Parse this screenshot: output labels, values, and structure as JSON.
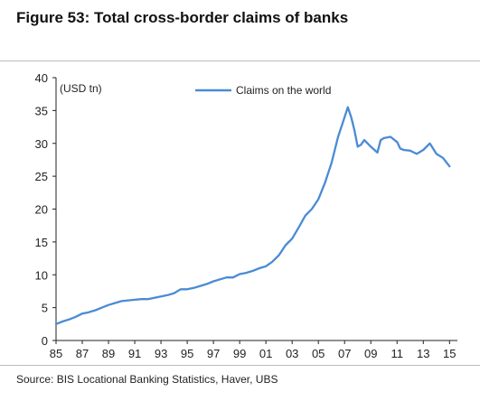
{
  "figure": {
    "title": "Figure 53: Total cross-border claims of banks",
    "source": "Source:  BIS Locational Banking Statistics, Haver, UBS"
  },
  "chart_data": {
    "type": "line",
    "ylabel": "(USD tn)",
    "ylim": [
      0,
      40
    ],
    "yticks": [
      0,
      5,
      10,
      15,
      20,
      25,
      30,
      35,
      40
    ],
    "xlim": [
      1985,
      2015.6
    ],
    "xticks": [
      {
        "label": "85",
        "x": 1985
      },
      {
        "label": "87",
        "x": 1987
      },
      {
        "label": "89",
        "x": 1989
      },
      {
        "label": "91",
        "x": 1991
      },
      {
        "label": "93",
        "x": 1993
      },
      {
        "label": "95",
        "x": 1995
      },
      {
        "label": "97",
        "x": 1997
      },
      {
        "label": "99",
        "x": 1999
      },
      {
        "label": "01",
        "x": 2001
      },
      {
        "label": "03",
        "x": 2003
      },
      {
        "label": "05",
        "x": 2005
      },
      {
        "label": "07",
        "x": 2007
      },
      {
        "label": "09",
        "x": 2009
      },
      {
        "label": "11",
        "x": 2011
      },
      {
        "label": "13",
        "x": 2013
      },
      {
        "label": "15",
        "x": 2015
      }
    ],
    "grid": false,
    "legend_position": "top-center",
    "series": [
      {
        "name": "Claims on the world",
        "color": "#4a8bd4",
        "x": [
          1985.0,
          1985.5,
          1986.0,
          1986.5,
          1987.0,
          1987.5,
          1988.0,
          1988.5,
          1989.0,
          1989.5,
          1990.0,
          1990.5,
          1991.0,
          1991.5,
          1992.0,
          1992.5,
          1993.0,
          1993.5,
          1994.0,
          1994.5,
          1995.0,
          1995.5,
          1996.0,
          1996.5,
          1997.0,
          1997.5,
          1998.0,
          1998.5,
          1999.0,
          1999.5,
          2000.0,
          2000.5,
          2001.0,
          2001.5,
          2002.0,
          2002.5,
          2003.0,
          2003.5,
          2004.0,
          2004.5,
          2005.0,
          2005.5,
          2006.0,
          2006.5,
          2007.0,
          2007.25,
          2007.5,
          2007.75,
          2008.0,
          2008.25,
          2008.5,
          2009.0,
          2009.5,
          2009.75,
          2010.0,
          2010.5,
          2011.0,
          2011.25,
          2011.5,
          2012.0,
          2012.5,
          2013.0,
          2013.5,
          2014.0,
          2014.5,
          2015.0
        ],
        "y": [
          2.5,
          2.9,
          3.2,
          3.6,
          4.1,
          4.3,
          4.6,
          5.0,
          5.4,
          5.7,
          6.0,
          6.1,
          6.2,
          6.3,
          6.3,
          6.5,
          6.7,
          6.9,
          7.2,
          7.8,
          7.8,
          8.0,
          8.3,
          8.6,
          9.0,
          9.3,
          9.6,
          9.6,
          10.1,
          10.3,
          10.6,
          11.0,
          11.3,
          12.0,
          13.0,
          14.5,
          15.5,
          17.2,
          19.0,
          20.0,
          21.5,
          24.0,
          27.0,
          31.0,
          34.0,
          35.5,
          34.0,
          32.0,
          29.5,
          29.8,
          30.5,
          29.5,
          28.6,
          30.5,
          30.8,
          31.0,
          30.2,
          29.2,
          29.0,
          28.9,
          28.4,
          29.0,
          30.0,
          28.4,
          27.8,
          26.5
        ]
      }
    ]
  }
}
